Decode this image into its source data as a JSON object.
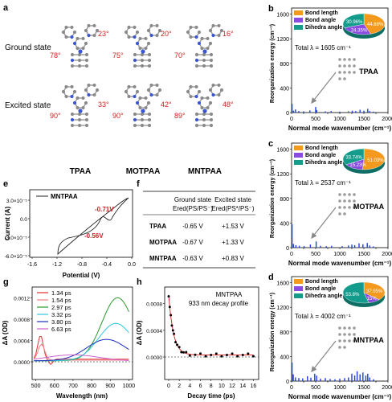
{
  "panel_a": {
    "letter": "a",
    "columns": [
      "TPAA",
      "MOTPAA",
      "MNTPAA"
    ],
    "rows": [
      "Ground state",
      "Excited state"
    ],
    "angles": {
      "ground": [
        [
          "23°",
          "78°"
        ],
        [
          "20°",
          "75°"
        ],
        [
          "16°",
          "70°"
        ]
      ],
      "excited": [
        [
          "33°",
          "90°"
        ],
        [
          "42°",
          "90°"
        ],
        [
          "48°",
          "89°"
        ]
      ]
    }
  },
  "reorg_panels": [
    {
      "letter": "b",
      "molecule": "TPAA",
      "total": "Total λ = 1605 cm⁻¹",
      "pie": {
        "bond_length": "44.68%",
        "bond_angle": "24.35%",
        "dihedral": "30.96%"
      },
      "bars": [
        [
          10,
          140
        ],
        [
          40,
          30
        ],
        [
          80,
          50
        ],
        [
          150,
          25
        ],
        [
          250,
          20
        ],
        [
          380,
          35
        ],
        [
          500,
          90
        ],
        [
          520,
          40
        ],
        [
          700,
          20
        ],
        [
          820,
          25
        ],
        [
          1000,
          15
        ],
        [
          1180,
          20
        ],
        [
          1260,
          30
        ],
        [
          1330,
          25
        ],
        [
          1420,
          45
        ],
        [
          1500,
          30
        ],
        [
          1580,
          60
        ],
        [
          1620,
          25
        ],
        [
          1700,
          15
        ]
      ]
    },
    {
      "letter": "c",
      "molecule": "MOTPAA",
      "total": "Total λ = 2537 cm⁻¹",
      "pie": {
        "bond_length": "51.03%",
        "bond_angle": "15.23%",
        "dihedral": "33.74%"
      },
      "bars": [
        [
          10,
          380
        ],
        [
          40,
          60
        ],
        [
          90,
          40
        ],
        [
          160,
          30
        ],
        [
          260,
          25
        ],
        [
          390,
          50
        ],
        [
          510,
          100
        ],
        [
          600,
          30
        ],
        [
          720,
          25
        ],
        [
          830,
          30
        ],
        [
          1050,
          25
        ],
        [
          1180,
          35
        ],
        [
          1250,
          50
        ],
        [
          1310,
          40
        ],
        [
          1400,
          70
        ],
        [
          1480,
          55
        ],
        [
          1570,
          75
        ],
        [
          1620,
          35
        ],
        [
          1700,
          20
        ]
      ]
    },
    {
      "letter": "d",
      "molecule": "MNTPAA",
      "total": "Total λ = 4002 cm⁻¹",
      "pie": {
        "bond_length": "37.05%",
        "bond_angle": "9.15%",
        "dihedral": "53.8%"
      },
      "bars": [
        [
          10,
          300
        ],
        [
          35,
          110
        ],
        [
          80,
          60
        ],
        [
          150,
          50
        ],
        [
          230,
          45
        ],
        [
          330,
          80
        ],
        [
          400,
          55
        ],
        [
          480,
          120
        ],
        [
          520,
          90
        ],
        [
          600,
          40
        ],
        [
          700,
          50
        ],
        [
          800,
          35
        ],
        [
          900,
          30
        ],
        [
          1000,
          40
        ],
        [
          1100,
          50
        ],
        [
          1180,
          60
        ],
        [
          1250,
          120
        ],
        [
          1310,
          90
        ],
        [
          1360,
          160
        ],
        [
          1420,
          110
        ],
        [
          1480,
          140
        ],
        [
          1540,
          90
        ],
        [
          1580,
          120
        ],
        [
          1620,
          60
        ],
        [
          1700,
          30
        ]
      ]
    }
  ],
  "reorg_common": {
    "ylabel": "Reorganization energy (cm⁻¹)",
    "xlabel": "Normal mode wavenumber (cm⁻¹)",
    "yticks": [
      "0",
      "400",
      "800",
      "1200",
      "1600"
    ],
    "xticks": [
      "0",
      "250",
      "500",
      "750",
      "1000",
      "1250",
      "1500",
      "1750",
      "2000"
    ],
    "legend": [
      "Bond length",
      "Bond angle",
      "Dihedra angle"
    ],
    "colors": {
      "bond_length": "#f39a1e",
      "bond_angle": "#8a4be0",
      "dihedral": "#139c8c",
      "bars": "#1f3fe0"
    }
  },
  "panel_e": {
    "letter": "e",
    "legend": "MNTPAA",
    "peak1": "-0.71V",
    "peak2": "-0.56V",
    "xlabel": "Potential (V)",
    "ylabel": "Current (A)",
    "xticks": [
      "-1.6",
      "-1.2",
      "-0.8",
      "-0.4",
      "0.0"
    ],
    "yticks": [
      "3.0×10⁻⁵",
      "0.0",
      "-3.0×10⁻⁵",
      "-6.0×10⁻⁵"
    ]
  },
  "panel_f": {
    "letter": "f",
    "head1": "Ground state",
    "head2": "Excited state",
    "sub1": "Ered(PS/PS⁻)",
    "sub2": "Ered(PS*/PS⁻)",
    "rows": [
      {
        "name": "TPAA",
        "ground": "-0.65 V",
        "excited": "+1.53 V"
      },
      {
        "name": "MOTPAA",
        "ground": "-0.67 V",
        "excited": "+1.33 V"
      },
      {
        "name": "MNTPAA",
        "ground": "-0.63 V",
        "excited": "+0.83 V"
      }
    ]
  },
  "panel_g": {
    "letter": "g",
    "xlabel": "Wavelength (nm)",
    "ylabel": "ΔA (OD)",
    "xticks": [
      "500",
      "600",
      "700",
      "800",
      "900",
      "1000"
    ],
    "yticks": [
      "0.0000",
      "0.0004",
      "0.0008",
      "0.0012"
    ],
    "series": [
      {
        "name": "1.34 ps",
        "color": "#e03030"
      },
      {
        "name": "1.54 ps",
        "color": "#f08080"
      },
      {
        "name": "2.97 ps",
        "color": "#2a9a2a"
      },
      {
        "name": "3.32 ps",
        "color": "#30c8e0"
      },
      {
        "name": "3.80 ps",
        "color": "#2030c0"
      },
      {
        "name": "6.63 ps",
        "color": "#d060d0"
      }
    ]
  },
  "panel_h": {
    "letter": "h",
    "title1": "MNTPAA",
    "title2": "933 nm decay profile",
    "xlabel": "Decay time (ps)",
    "ylabel": "ΔA (OD)",
    "xticks": [
      "0",
      "2",
      "4",
      "6",
      "8",
      "10",
      "12",
      "14",
      "16"
    ],
    "yticks": [
      "0.0000",
      "0.0004",
      "0.0008"
    ]
  }
}
